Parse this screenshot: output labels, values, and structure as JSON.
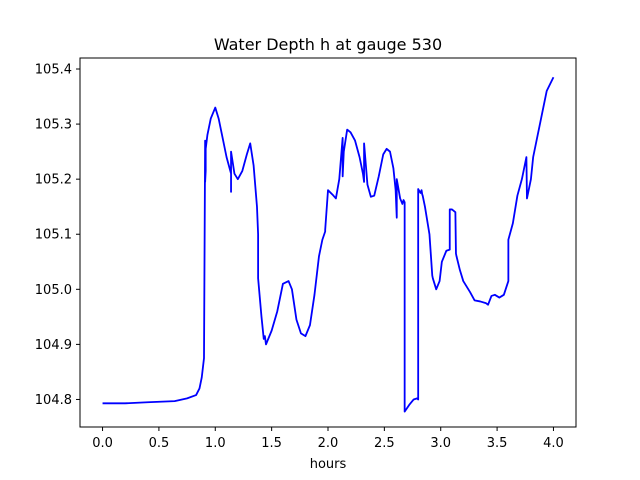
{
  "chart_data": {
    "type": "line",
    "title": "Water Depth h at gauge 530",
    "xlabel": "hours",
    "ylabel": "",
    "xlim": [
      -0.2,
      4.2
    ],
    "ylim": [
      104.75,
      105.42
    ],
    "xticks": [
      0.0,
      0.5,
      1.0,
      1.5,
      2.0,
      2.5,
      3.0,
      3.5,
      4.0
    ],
    "xtick_labels": [
      "0.0",
      "0.5",
      "1.0",
      "1.5",
      "2.0",
      "2.5",
      "3.0",
      "3.5",
      "4.0"
    ],
    "yticks": [
      104.8,
      104.9,
      105.0,
      105.1,
      105.2,
      105.3,
      105.4
    ],
    "ytick_labels": [
      "104.8",
      "104.9",
      "105.0",
      "105.1",
      "105.2",
      "105.3",
      "105.4"
    ],
    "grid": false,
    "legend": "none",
    "series": [
      {
        "color": "#0000ff",
        "x": [
          0.0,
          0.2,
          0.4,
          0.64,
          0.75,
          0.83,
          0.86,
          0.88,
          0.9,
          0.91,
          0.91,
          0.915,
          0.915,
          0.93,
          0.96,
          1.0,
          1.03,
          1.06,
          1.1,
          1.14,
          1.14,
          1.14,
          1.17,
          1.2,
          1.24,
          1.28,
          1.31,
          1.34,
          1.37,
          1.38,
          1.38,
          1.41,
          1.43,
          1.44,
          1.45,
          1.46,
          1.5,
          1.55,
          1.6,
          1.65,
          1.68,
          1.72,
          1.76,
          1.8,
          1.84,
          1.88,
          1.92,
          1.95,
          1.975,
          1.975,
          2.0,
          2.04,
          2.07,
          2.1,
          2.13,
          2.13,
          2.14,
          2.17,
          2.2,
          2.24,
          2.28,
          2.31,
          2.32,
          2.32,
          2.35,
          2.38,
          2.41,
          2.45,
          2.49,
          2.52,
          2.55,
          2.58,
          2.6,
          2.61,
          2.61,
          2.64,
          2.66,
          2.67,
          2.68,
          2.68,
          2.68,
          2.72,
          2.76,
          2.79,
          2.8,
          2.8,
          2.82,
          2.83,
          2.835,
          2.84,
          2.86,
          2.9,
          2.925,
          2.93,
          2.96,
          2.99,
          3.01,
          3.05,
          3.08,
          3.08,
          3.1,
          3.13,
          3.135,
          3.14,
          3.17,
          3.2,
          3.26,
          3.3,
          3.35,
          3.4,
          3.42,
          3.45,
          3.48,
          3.52,
          3.56,
          3.6,
          3.6,
          3.64,
          3.68,
          3.72,
          3.76,
          3.765,
          3.77,
          3.8,
          3.82,
          3.86,
          3.9,
          3.94,
          4.0
        ],
        "y": [
          104.793,
          104.793,
          104.795,
          104.797,
          104.802,
          104.808,
          104.82,
          104.84,
          104.875,
          105.27,
          105.195,
          105.215,
          105.255,
          105.28,
          105.31,
          105.33,
          105.31,
          105.28,
          105.24,
          105.21,
          105.177,
          105.25,
          105.21,
          105.2,
          105.215,
          105.245,
          105.265,
          105.225,
          105.15,
          105.1,
          105.02,
          104.95,
          104.91,
          104.915,
          104.9,
          104.905,
          104.925,
          104.96,
          105.01,
          105.015,
          105.0,
          104.945,
          104.92,
          104.915,
          104.935,
          104.99,
          105.06,
          105.09,
          105.105,
          105.108,
          105.18,
          105.172,
          105.165,
          105.2,
          105.275,
          105.205,
          105.25,
          105.29,
          105.285,
          105.27,
          105.24,
          105.21,
          105.195,
          105.265,
          105.19,
          105.168,
          105.17,
          105.205,
          105.245,
          105.255,
          105.25,
          105.22,
          105.18,
          105.13,
          105.2,
          105.165,
          105.155,
          105.162,
          105.158,
          105.15,
          104.778,
          104.79,
          104.8,
          104.802,
          104.8,
          105.182,
          105.175,
          105.18,
          105.173,
          105.17,
          105.15,
          105.1,
          105.025,
          105.02,
          105.0,
          105.015,
          105.05,
          105.07,
          105.072,
          105.145,
          105.145,
          105.14,
          105.065,
          105.06,
          105.035,
          105.015,
          104.995,
          104.98,
          104.978,
          104.975,
          104.972,
          104.988,
          104.99,
          104.985,
          104.99,
          105.015,
          105.09,
          105.12,
          105.17,
          105.2,
          105.24,
          105.165,
          105.17,
          105.2,
          105.24,
          105.28,
          105.32,
          105.36,
          105.385
        ]
      }
    ]
  }
}
